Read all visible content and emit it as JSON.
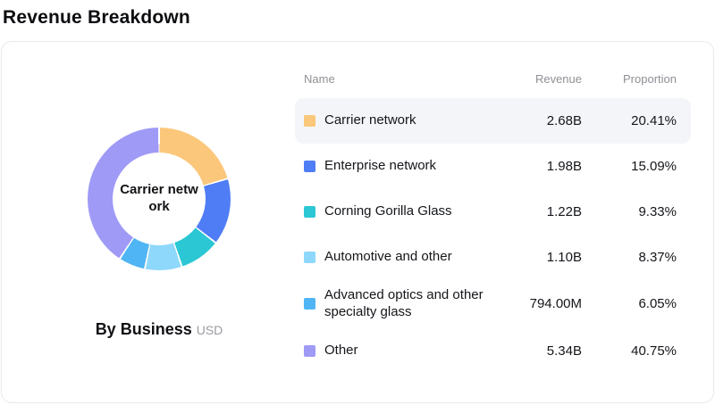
{
  "page": {
    "title": "Revenue Breakdown"
  },
  "chart_data": {
    "type": "pie",
    "title": "By Business",
    "unit": "USD",
    "center_label": "Carrier network",
    "legend_position": "right-table",
    "donut": true,
    "series": [
      {
        "name": "Carrier network",
        "revenue": "2.68B",
        "value": 20.41,
        "proportion": "20.41%",
        "color": "#fbc77b",
        "highlighted": true
      },
      {
        "name": "Enterprise network",
        "revenue": "1.98B",
        "value": 15.09,
        "proportion": "15.09%",
        "color": "#4f7df5",
        "highlighted": false
      },
      {
        "name": "Corning Gorilla Glass",
        "revenue": "1.22B",
        "value": 9.33,
        "proportion": "9.33%",
        "color": "#2bc7d4",
        "highlighted": false
      },
      {
        "name": "Automotive and other",
        "revenue": "1.10B",
        "value": 8.37,
        "proportion": "8.37%",
        "color": "#8ed8fb",
        "highlighted": false
      },
      {
        "name": "Advanced optics and other specialty glass",
        "revenue": "794.00M",
        "value": 6.05,
        "proportion": "6.05%",
        "color": "#4fb5f4",
        "highlighted": false
      },
      {
        "name": "Other",
        "revenue": "5.34B",
        "value": 40.75,
        "proportion": "40.75%",
        "color": "#9f9af6",
        "highlighted": false
      }
    ]
  },
  "table": {
    "columns": [
      "Name",
      "Revenue",
      "Proportion"
    ]
  }
}
